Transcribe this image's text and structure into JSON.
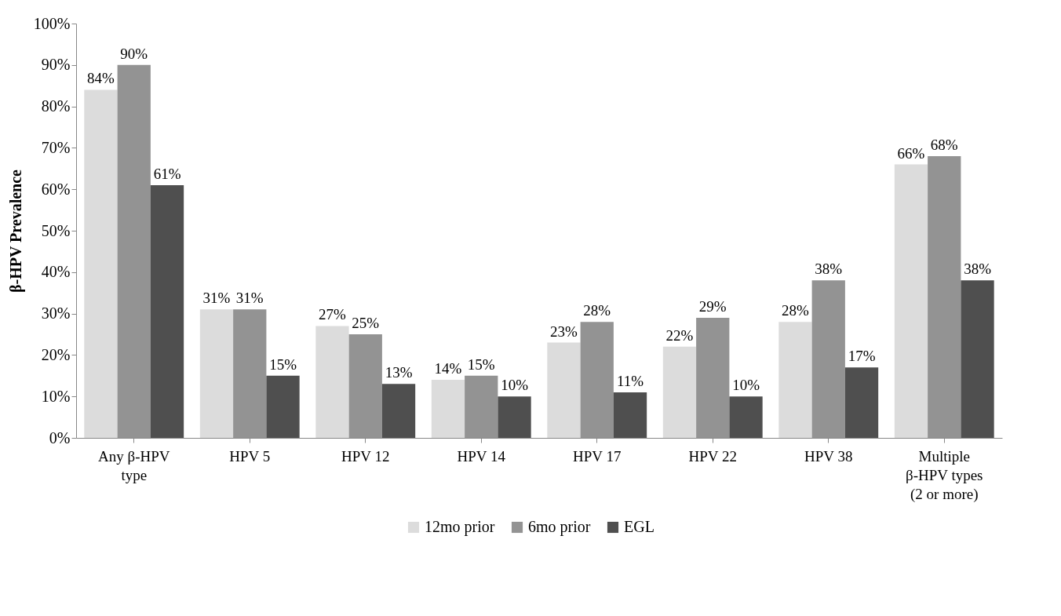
{
  "chart_data": {
    "type": "bar",
    "ylabel": "β-HPV Prevalence",
    "categories": [
      "Any β-HPV type",
      "HPV 5",
      "HPV 12",
      "HPV 14",
      "HPV 17",
      "HPV 22",
      "HPV 38",
      "Multiple β-HPV types (2 or more)"
    ],
    "series": [
      {
        "name": "12mo prior",
        "color": "#dcdcdc",
        "values": [
          84,
          31,
          27,
          14,
          23,
          22,
          28,
          66
        ],
        "value_labels": [
          "84%",
          "31%",
          "27%",
          "14%",
          "23%",
          "22%",
          "28%",
          "66%"
        ]
      },
      {
        "name": "6mo prior",
        "color": "#939393",
        "values": [
          90,
          31,
          25,
          15,
          28,
          29,
          38,
          68
        ],
        "value_labels": [
          "90%",
          "31%",
          "25%",
          "15%",
          "28%",
          "29%",
          "38%",
          "68%"
        ]
      },
      {
        "name": "EGL",
        "color": "#4f4f4f",
        "values": [
          61,
          15,
          13,
          10,
          11,
          10,
          17,
          38
        ],
        "value_labels": [
          "61%",
          "15%",
          "13%",
          "10%",
          "11%",
          "10%",
          "17%",
          "38%"
        ]
      }
    ],
    "ylim": [
      0,
      100
    ],
    "yticks": [
      {
        "value": 0,
        "label": "0%"
      },
      {
        "value": 10,
        "label": "10%"
      },
      {
        "value": 20,
        "label": "20%"
      },
      {
        "value": 30,
        "label": "30%"
      },
      {
        "value": 40,
        "label": "40%"
      },
      {
        "value": 50,
        "label": "50%"
      },
      {
        "value": 60,
        "label": "60%"
      },
      {
        "value": 70,
        "label": "70%"
      },
      {
        "value": 80,
        "label": "80%"
      },
      {
        "value": 90,
        "label": "90%"
      },
      {
        "value": 100,
        "label": "100%"
      }
    ],
    "grid": false,
    "legend": "bottom"
  }
}
